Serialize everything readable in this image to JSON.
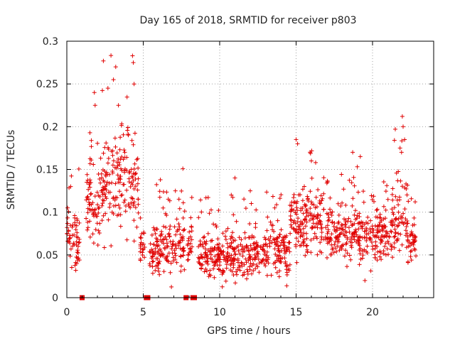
{
  "chart_data": {
    "type": "scatter",
    "title": "Day 165 of 2018, SRMTID for receiver p803",
    "xlabel": "GPS time / hours",
    "ylabel": "SRMTID / TECUs",
    "xlim": [
      0,
      24
    ],
    "ylim": [
      0,
      0.3
    ],
    "x_ticks": [
      0,
      5,
      10,
      15,
      20
    ],
    "x_tick_labels": [
      "0",
      "5",
      "10",
      "15",
      "20"
    ],
    "y_ticks": [
      0,
      0.05,
      0.1,
      0.15,
      0.2,
      0.25,
      0.3
    ],
    "y_tick_labels": [
      "0",
      "0.05",
      "0.1",
      "0.15",
      "0.2",
      "0.25",
      "0.3"
    ],
    "grid": true,
    "marker": "plus",
    "color": "#e00000",
    "segments": [
      {
        "x_start": 0.0,
        "x_end": 0.85,
        "mean": 0.065,
        "spread": 0.032,
        "outliers": [
          [
            0.25,
            0.13
          ],
          [
            0.05,
            0.105
          ]
        ]
      },
      {
        "x_start": 1.25,
        "x_end": 2.2,
        "mean": 0.105,
        "spread": 0.04,
        "outliers": [
          [
            1.8,
            0.24
          ],
          [
            1.85,
            0.225
          ]
        ]
      },
      {
        "x_start": 2.2,
        "x_end": 3.3,
        "mean": 0.13,
        "spread": 0.05,
        "outliers": [
          [
            3.2,
            0.27
          ],
          [
            3.05,
            0.255
          ]
        ]
      },
      {
        "x_start": 3.3,
        "x_end": 4.7,
        "mean": 0.14,
        "spread": 0.055,
        "outliers": [
          [
            4.3,
            0.283
          ],
          [
            4.35,
            0.275
          ],
          [
            4.4,
            0.25
          ]
        ]
      },
      {
        "x_start": 4.8,
        "x_end": 5.1,
        "mean": 0.06,
        "spread": 0.02,
        "outliers": []
      },
      {
        "x_start": 5.4,
        "x_end": 7.75,
        "mean": 0.06,
        "spread": 0.03,
        "outliers": [
          [
            7.1,
            0.125
          ]
        ]
      },
      {
        "x_start": 7.85,
        "x_end": 8.2,
        "mean": 0.065,
        "spread": 0.025,
        "outliers": []
      },
      {
        "x_start": 8.6,
        "x_end": 13.0,
        "mean": 0.05,
        "spread": 0.025,
        "outliers": [
          [
            11.0,
            0.14
          ],
          [
            12.0,
            0.125
          ]
        ]
      },
      {
        "x_start": 13.0,
        "x_end": 14.6,
        "mean": 0.055,
        "spread": 0.03,
        "outliers": [
          [
            13.6,
            0.105
          ]
        ]
      },
      {
        "x_start": 14.6,
        "x_end": 17.0,
        "mean": 0.09,
        "spread": 0.035,
        "outliers": [
          [
            15.0,
            0.185
          ],
          [
            15.1,
            0.18
          ],
          [
            16.0,
            0.16
          ]
        ]
      },
      {
        "x_start": 17.0,
        "x_end": 21.3,
        "mean": 0.075,
        "spread": 0.03,
        "outliers": [
          [
            18.7,
            0.17
          ],
          [
            19.2,
            0.165
          ],
          [
            19.5,
            0.02
          ]
        ]
      },
      {
        "x_start": 21.3,
        "x_end": 22.3,
        "mean": 0.09,
        "spread": 0.04,
        "outliers": [
          [
            21.95,
            0.212
          ],
          [
            22.0,
            0.2
          ],
          [
            21.8,
            0.175
          ]
        ]
      },
      {
        "x_start": 22.3,
        "x_end": 22.85,
        "mean": 0.065,
        "spread": 0.025,
        "outliers": []
      }
    ],
    "density_points_per_hour": 70,
    "gap_markers_x": [
      1.0,
      5.2,
      5.3,
      7.8,
      8.25,
      8.35
    ]
  }
}
